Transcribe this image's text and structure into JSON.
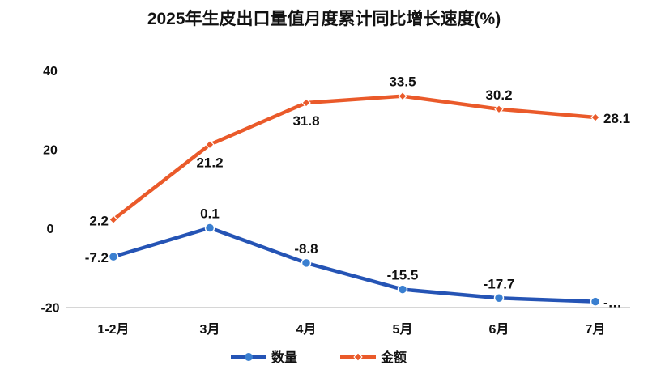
{
  "chart_data": {
    "type": "line",
    "title": "2025年生皮出口量值月度累计同比增长速度(%)",
    "xlabel": "",
    "ylabel": "",
    "categories": [
      "1-2月",
      "3月",
      "4月",
      "5月",
      "6月",
      "7月"
    ],
    "ylim": [
      -20,
      40
    ],
    "yticks": [
      -20,
      0,
      20,
      40
    ],
    "grid": false,
    "legend_position": "bottom",
    "series": [
      {
        "name": "数量",
        "color": "#2554b5",
        "marker_color": "#3a7fd0",
        "marker": "circle",
        "values": [
          -7.2,
          0.1,
          -8.8,
          -15.5,
          -17.7,
          -18.6
        ],
        "labels": [
          "-7.2",
          "0.1",
          "-8.8",
          "-15.5",
          "-17.7",
          "-…"
        ],
        "label_pos": [
          "left",
          "above",
          "above",
          "above",
          "above",
          "right"
        ]
      },
      {
        "name": "金额",
        "color": "#ea5a2a",
        "marker_color": "#ea5a2a",
        "marker": "diamond",
        "values": [
          2.2,
          21.2,
          31.8,
          33.5,
          30.2,
          28.1
        ],
        "labels": [
          "2.2",
          "21.2",
          "31.8",
          "33.5",
          "30.2",
          "28.1"
        ],
        "label_pos": [
          "left",
          "below",
          "below",
          "above",
          "above",
          "right"
        ]
      }
    ]
  }
}
